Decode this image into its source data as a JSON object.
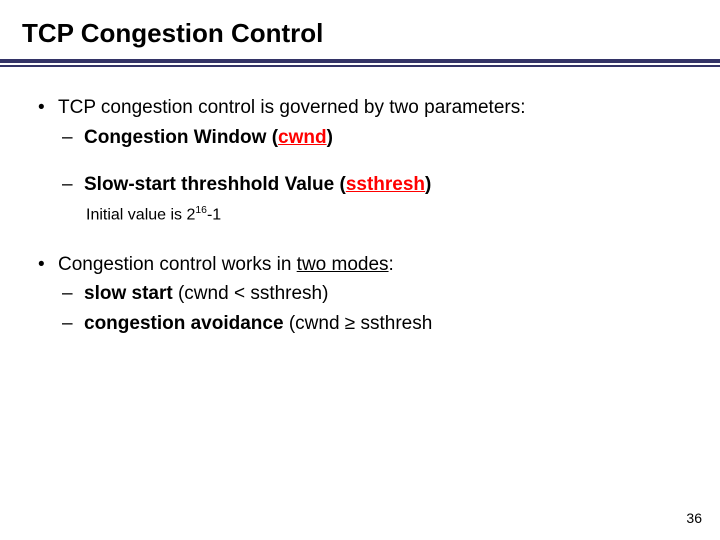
{
  "title": "TCP Congestion Control",
  "bullets": {
    "b1": {
      "text": "TCP congestion control is governed by two parameters:",
      "s1_pre": "Congestion Window (",
      "s1_key": "cwnd",
      "s1_post": ")",
      "s2_pre": "Slow-start threshhold Value (",
      "s2_key": "ssthresh",
      "s2_post": ")",
      "note_pre": "Initial value is 2",
      "note_sup": "16",
      "note_post": "-1"
    },
    "b2": {
      "pre": "Congestion control works in ",
      "ul": "two modes",
      "post": ":",
      "s1_b": "slow start",
      "s1_rest": " (cwnd < ssthresh)",
      "s2_b": "congestion avoidance",
      "s2_rest": " (cwnd ≥ ssthresh"
    }
  },
  "page": "36",
  "colors": {
    "rule": "#333366",
    "red": "#ff0000"
  }
}
